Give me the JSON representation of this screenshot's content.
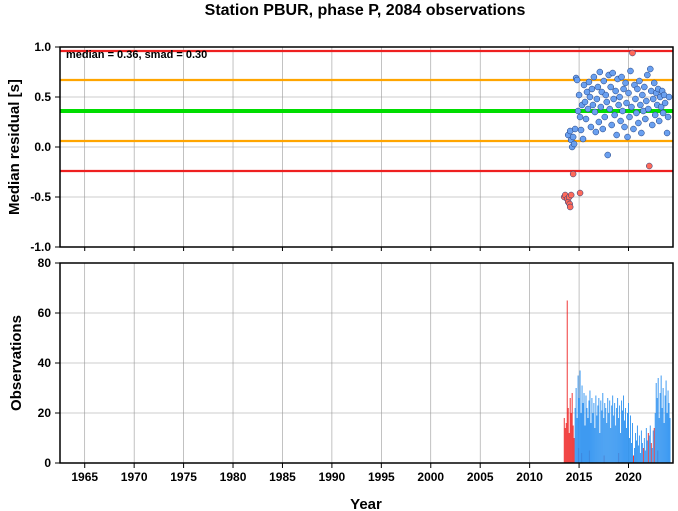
{
  "chart_data": [
    {
      "type": "scatter",
      "title": "Station PBUR, phase P, 2084 observations",
      "ylabel": "Median residual [s]",
      "xlim": [
        1962.5,
        2024.5
      ],
      "ylim": [
        -1.0,
        1.0
      ],
      "y_ticks": [
        -1.0,
        -0.5,
        0.0,
        0.5,
        1.0
      ],
      "y_tick_labels": [
        "-1.0",
        "-0.5",
        "0.0",
        "0.5",
        "1.0"
      ],
      "grid": true,
      "annotation": "median = 0.36, smad = 0.30",
      "reference_lines": [
        {
          "y": 0.96,
          "color": "#ee2020"
        },
        {
          "y": 0.67,
          "color": "#ffa500"
        },
        {
          "y": 0.36,
          "color": "#00dd00"
        },
        {
          "y": 0.06,
          "color": "#ffa500"
        },
        {
          "y": -0.24,
          "color": "#ee2020"
        }
      ],
      "series": [
        {
          "color": "#ff6a5a",
          "points": [
            [
              2013.5,
              -0.5
            ],
            [
              2013.6,
              -0.48
            ],
            [
              2013.8,
              -0.52
            ],
            [
              2013.9,
              -0.55
            ],
            [
              2014.0,
              -0.5
            ],
            [
              2014.05,
              -0.57
            ],
            [
              2014.1,
              -0.6
            ],
            [
              2014.2,
              -0.48
            ],
            [
              2014.4,
              -0.27
            ],
            [
              2015.1,
              -0.46
            ],
            [
              2022.1,
              -0.19
            ],
            [
              2020.4,
              0.94
            ]
          ]
        },
        {
          "color": "#6aa0f0",
          "points": [
            [
              2013.9,
              0.12
            ],
            [
              2014.1,
              0.16
            ],
            [
              2014.2,
              0.07
            ],
            [
              2014.3,
              0.0
            ],
            [
              2014.4,
              0.1
            ],
            [
              2014.5,
              0.03
            ],
            [
              2014.6,
              0.18
            ],
            [
              2014.7,
              0.69
            ],
            [
              2014.8,
              0.67
            ],
            [
              2014.9,
              0.36
            ],
            [
              2015.0,
              0.52
            ],
            [
              2015.1,
              0.3
            ],
            [
              2015.2,
              0.17
            ],
            [
              2015.3,
              0.42
            ],
            [
              2015.4,
              0.08
            ],
            [
              2015.5,
              0.62
            ],
            [
              2015.6,
              0.45
            ],
            [
              2015.7,
              0.28
            ],
            [
              2015.8,
              0.55
            ],
            [
              2015.9,
              0.38
            ],
            [
              2016.0,
              0.65
            ],
            [
              2016.1,
              0.5
            ],
            [
              2016.2,
              0.2
            ],
            [
              2016.3,
              0.58
            ],
            [
              2016.4,
              0.42
            ],
            [
              2016.5,
              0.7
            ],
            [
              2016.6,
              0.35
            ],
            [
              2016.7,
              0.15
            ],
            [
              2016.8,
              0.48
            ],
            [
              2016.9,
              0.6
            ],
            [
              2017.0,
              0.25
            ],
            [
              2017.1,
              0.75
            ],
            [
              2017.2,
              0.4
            ],
            [
              2017.3,
              0.55
            ],
            [
              2017.4,
              0.18
            ],
            [
              2017.5,
              0.66
            ],
            [
              2017.6,
              0.3
            ],
            [
              2017.7,
              0.52
            ],
            [
              2017.8,
              0.45
            ],
            [
              2017.9,
              -0.08
            ],
            [
              2018.0,
              0.72
            ],
            [
              2018.1,
              0.38
            ],
            [
              2018.2,
              0.6
            ],
            [
              2018.3,
              0.22
            ],
            [
              2018.4,
              0.74
            ],
            [
              2018.5,
              0.48
            ],
            [
              2018.6,
              0.32
            ],
            [
              2018.7,
              0.56
            ],
            [
              2018.8,
              0.12
            ],
            [
              2018.9,
              0.68
            ],
            [
              2019.0,
              0.42
            ],
            [
              2019.1,
              0.5
            ],
            [
              2019.2,
              0.26
            ],
            [
              2019.3,
              0.7
            ],
            [
              2019.4,
              0.36
            ],
            [
              2019.5,
              0.58
            ],
            [
              2019.6,
              0.2
            ],
            [
              2019.7,
              0.64
            ],
            [
              2019.8,
              0.44
            ],
            [
              2019.9,
              0.1
            ],
            [
              2020.0,
              0.54
            ],
            [
              2020.1,
              0.3
            ],
            [
              2020.2,
              0.76
            ],
            [
              2020.3,
              0.4
            ],
            [
              2020.5,
              0.18
            ],
            [
              2020.6,
              0.62
            ],
            [
              2020.7,
              0.48
            ],
            [
              2020.8,
              0.34
            ],
            [
              2020.9,
              0.58
            ],
            [
              2021.0,
              0.24
            ],
            [
              2021.1,
              0.66
            ],
            [
              2021.2,
              0.42
            ],
            [
              2021.3,
              0.14
            ],
            [
              2021.4,
              0.52
            ],
            [
              2021.5,
              0.36
            ],
            [
              2021.6,
              0.6
            ],
            [
              2021.7,
              0.28
            ],
            [
              2021.8,
              0.46
            ],
            [
              2021.9,
              0.72
            ],
            [
              2022.0,
              0.38
            ],
            [
              2022.2,
              0.78
            ],
            [
              2022.3,
              0.56
            ],
            [
              2022.4,
              0.22
            ],
            [
              2022.5,
              0.48
            ],
            [
              2022.6,
              0.64
            ],
            [
              2022.7,
              0.32
            ],
            [
              2022.8,
              0.54
            ],
            [
              2022.9,
              0.42
            ],
            [
              2023.0,
              0.58
            ],
            [
              2023.1,
              0.26
            ],
            [
              2023.2,
              0.5
            ],
            [
              2023.3,
              0.4
            ],
            [
              2023.4,
              0.56
            ],
            [
              2023.5,
              0.34
            ],
            [
              2023.6,
              0.52
            ],
            [
              2023.7,
              0.44
            ],
            [
              2023.9,
              0.14
            ],
            [
              2024.0,
              0.3
            ],
            [
              2024.1,
              0.5
            ]
          ]
        }
      ]
    },
    {
      "type": "bar",
      "xlabel": "Year",
      "ylabel": "Observations",
      "xlim": [
        1962.5,
        2024.5
      ],
      "ylim": [
        0,
        80
      ],
      "x_ticks": [
        1965,
        1970,
        1975,
        1980,
        1985,
        1990,
        1995,
        2000,
        2005,
        2010,
        2015,
        2020
      ],
      "x_tick_labels": [
        "1965",
        "1970",
        "1975",
        "1980",
        "1985",
        "1990",
        "1995",
        "2000",
        "2005",
        "2010",
        "2015",
        "2020"
      ],
      "y_ticks": [
        0,
        20,
        40,
        60,
        80
      ],
      "y_tick_labels": [
        "0",
        "20",
        "40",
        "60",
        "80"
      ],
      "grid": true,
      "series": [
        {
          "color": "#ee2020",
          "bars": [
            [
              2013.5,
              18
            ],
            [
              2013.6,
              14
            ],
            [
              2013.7,
              16
            ],
            [
              2013.8,
              65
            ],
            [
              2013.9,
              22
            ],
            [
              2014.0,
              12
            ],
            [
              2014.1,
              26
            ],
            [
              2014.2,
              20
            ],
            [
              2014.3,
              28
            ],
            [
              2014.4,
              15
            ],
            [
              2014.5,
              10
            ],
            [
              2015.0,
              6
            ],
            [
              2015.3,
              4
            ],
            [
              2016.0,
              5
            ],
            [
              2017.5,
              3
            ],
            [
              2019.0,
              4
            ],
            [
              2020.5,
              3
            ],
            [
              2021.5,
              6
            ],
            [
              2022.0,
              12
            ],
            [
              2022.3,
              8
            ],
            [
              2022.6,
              14
            ],
            [
              2023.0,
              5
            ]
          ]
        },
        {
          "color": "#2a90f0",
          "bars": [
            [
              2014.6,
              22
            ],
            [
              2014.7,
              30
            ],
            [
              2014.8,
              18
            ],
            [
              2014.9,
              35
            ],
            [
              2015.0,
              26
            ],
            [
              2015.1,
              37
            ],
            [
              2015.2,
              20
            ],
            [
              2015.3,
              31
            ],
            [
              2015.4,
              24
            ],
            [
              2015.5,
              28
            ],
            [
              2015.6,
              15
            ],
            [
              2015.7,
              27
            ],
            [
              2015.8,
              22
            ],
            [
              2015.9,
              18
            ],
            [
              2016.0,
              25
            ],
            [
              2016.1,
              29
            ],
            [
              2016.2,
              16
            ],
            [
              2016.3,
              26
            ],
            [
              2016.4,
              20
            ],
            [
              2016.5,
              24
            ],
            [
              2016.6,
              14
            ],
            [
              2016.7,
              27
            ],
            [
              2016.8,
              19
            ],
            [
              2016.9,
              23
            ],
            [
              2017.0,
              26
            ],
            [
              2017.1,
              12
            ],
            [
              2017.2,
              25
            ],
            [
              2017.3,
              21
            ],
            [
              2017.4,
              28
            ],
            [
              2017.5,
              18
            ],
            [
              2017.6,
              24
            ],
            [
              2017.7,
              22
            ],
            [
              2017.8,
              16
            ],
            [
              2017.9,
              26
            ],
            [
              2018.0,
              20
            ],
            [
              2018.1,
              25
            ],
            [
              2018.2,
              14
            ],
            [
              2018.3,
              23
            ],
            [
              2018.4,
              27
            ],
            [
              2018.5,
              19
            ],
            [
              2018.6,
              24
            ],
            [
              2018.7,
              15
            ],
            [
              2018.8,
              22
            ],
            [
              2018.9,
              26
            ],
            [
              2019.0,
              18
            ],
            [
              2019.1,
              23
            ],
            [
              2019.2,
              12
            ],
            [
              2019.3,
              25
            ],
            [
              2019.4,
              21
            ],
            [
              2019.5,
              27
            ],
            [
              2019.6,
              17
            ],
            [
              2019.7,
              22
            ],
            [
              2019.8,
              14
            ],
            [
              2019.9,
              20
            ],
            [
              2020.0,
              24
            ],
            [
              2020.1,
              10
            ],
            [
              2020.2,
              19
            ],
            [
              2020.3,
              8
            ],
            [
              2020.4,
              16
            ],
            [
              2020.6,
              6
            ],
            [
              2020.7,
              12
            ],
            [
              2020.8,
              9
            ],
            [
              2020.9,
              15
            ],
            [
              2021.0,
              7
            ],
            [
              2021.1,
              11
            ],
            [
              2021.2,
              4
            ],
            [
              2021.3,
              13
            ],
            [
              2021.4,
              8
            ],
            [
              2021.6,
              10
            ],
            [
              2021.7,
              5
            ],
            [
              2021.8,
              14
            ],
            [
              2021.9,
              9
            ],
            [
              2022.1,
              11
            ],
            [
              2022.2,
              15
            ],
            [
              2022.4,
              6
            ],
            [
              2022.5,
              13
            ],
            [
              2022.7,
              20
            ],
            [
              2022.8,
              32
            ],
            [
              2022.9,
              26
            ],
            [
              2023.0,
              34
            ],
            [
              2023.1,
              18
            ],
            [
              2023.2,
              28
            ],
            [
              2023.3,
              35
            ],
            [
              2023.4,
              22
            ],
            [
              2023.5,
              30
            ],
            [
              2023.6,
              16
            ],
            [
              2023.7,
              27
            ],
            [
              2023.8,
              33
            ],
            [
              2023.9,
              20
            ],
            [
              2024.0,
              29
            ],
            [
              2024.1,
              24
            ],
            [
              2024.2,
              18
            ]
          ]
        }
      ]
    }
  ]
}
